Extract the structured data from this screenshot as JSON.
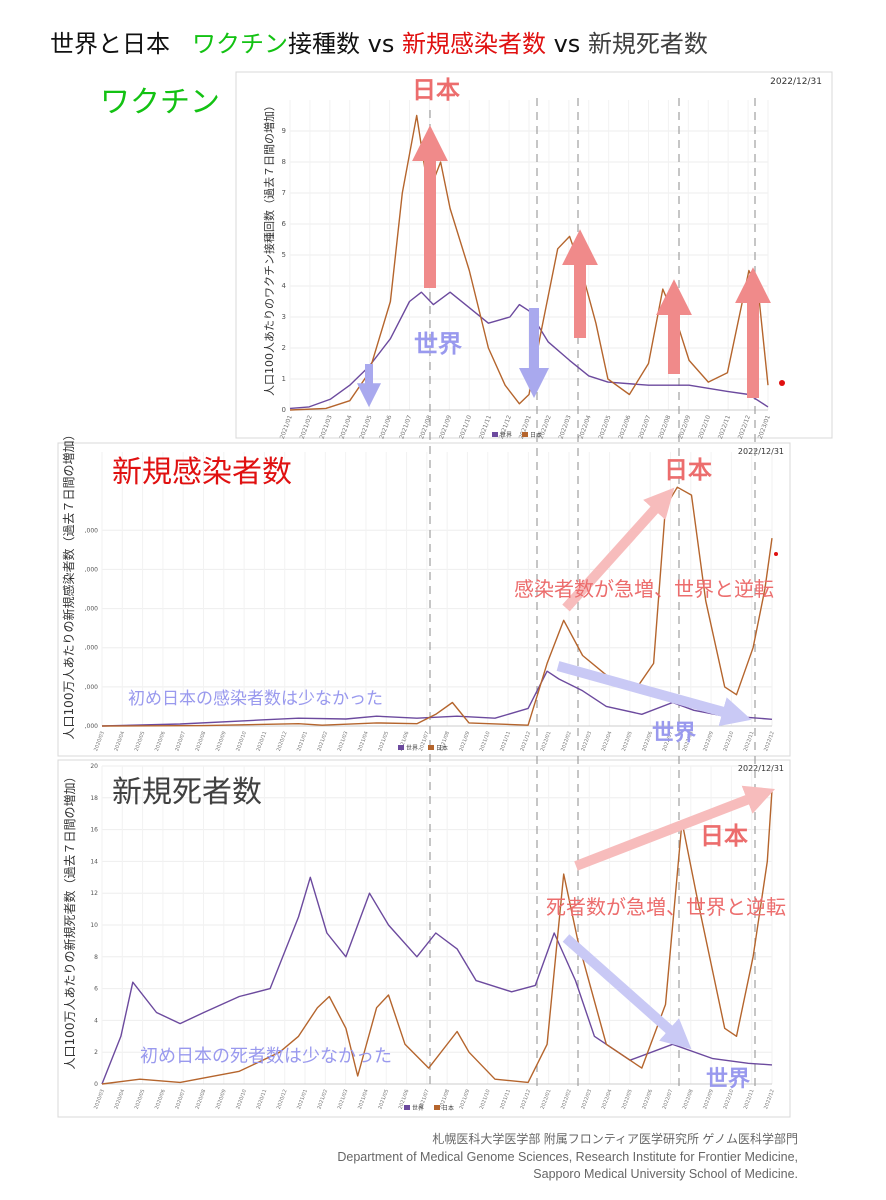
{
  "title": {
    "part1": "世界と日本",
    "part2": "ワクチン",
    "part3": "接種数 vs ",
    "part4": "新規感染者数",
    "part5": " vs ",
    "part6": "新規死者数"
  },
  "colors": {
    "world": "#6c4a9e",
    "japan": "#b5652d",
    "vaccine_title": "#13c213",
    "cases_title": "#e01010",
    "deaths_title": "#404040",
    "arrow_red": "#f08a8a",
    "arrow_blue": "#a9a9ee",
    "anno_red": "#ec6d6d",
    "anno_blue": "#9999ee"
  },
  "credit": {
    "line1": "札幌医科大学医学部 附属フロンティア医学研究所 ゲノム医科学部門",
    "line2": "Department of Medical Genome Sciences, Research Institute for Frontier Medicine,",
    "line3": "Sapporo Medical University School of Medicine."
  },
  "chart_data": [
    {
      "type": "line",
      "panel_label": "ワクチン",
      "date_label": "2022/12/31",
      "ylabel": "人口100人あたりのワクチン接種回数（過去７日間の増加）",
      "ylim": [
        0,
        10
      ],
      "yticks": [
        "0",
        "1",
        "2",
        "3",
        "4",
        "5",
        "6",
        "7",
        "8",
        "9"
      ],
      "x_ticks": [
        "2021/01",
        "2021/02",
        "2021/03",
        "2021/04",
        "2021/05",
        "2021/06",
        "2021/07",
        "2021/08",
        "2021/09",
        "2021/10",
        "2021/11",
        "2021/12",
        "2022/01",
        "2022/02",
        "2022/03",
        "2022/04",
        "2022/05",
        "2022/06",
        "2022/07",
        "2022/08",
        "2022/09",
        "2022/10",
        "2022/11",
        "2022/12",
        "2023/01"
      ],
      "x_range": [
        2021.0,
        2023.0
      ],
      "legend": [
        "世界",
        "日本"
      ],
      "annotations": {
        "japan": "日本",
        "world": "世界"
      },
      "series": [
        {
          "name": "世界",
          "points": [
            [
              2021.0,
              0.05
            ],
            [
              2021.08,
              0.1
            ],
            [
              2021.17,
              0.35
            ],
            [
              2021.25,
              0.8
            ],
            [
              2021.33,
              1.4
            ],
            [
              2021.42,
              2.3
            ],
            [
              2021.5,
              3.5
            ],
            [
              2021.55,
              3.8
            ],
            [
              2021.6,
              3.4
            ],
            [
              2021.67,
              3.8
            ],
            [
              2021.75,
              3.3
            ],
            [
              2021.83,
              2.8
            ],
            [
              2021.92,
              3.0
            ],
            [
              2021.96,
              3.4
            ],
            [
              2022.0,
              3.2
            ],
            [
              2022.08,
              2.2
            ],
            [
              2022.17,
              1.6
            ],
            [
              2022.25,
              1.1
            ],
            [
              2022.33,
              0.9
            ],
            [
              2022.5,
              0.8
            ],
            [
              2022.67,
              0.8
            ],
            [
              2022.83,
              0.6
            ],
            [
              2022.92,
              0.5
            ],
            [
              2023.0,
              0.1
            ]
          ]
        },
        {
          "name": "日本",
          "points": [
            [
              2021.0,
              0.0
            ],
            [
              2021.15,
              0.05
            ],
            [
              2021.25,
              0.3
            ],
            [
              2021.33,
              1.2
            ],
            [
              2021.42,
              3.5
            ],
            [
              2021.47,
              7.0
            ],
            [
              2021.53,
              9.5
            ],
            [
              2021.58,
              7.0
            ],
            [
              2021.63,
              8.0
            ],
            [
              2021.67,
              6.5
            ],
            [
              2021.75,
              4.5
            ],
            [
              2021.83,
              2.0
            ],
            [
              2021.9,
              0.8
            ],
            [
              2021.96,
              0.2
            ],
            [
              2022.0,
              0.5
            ],
            [
              2022.05,
              2.5
            ],
            [
              2022.12,
              5.2
            ],
            [
              2022.17,
              5.6
            ],
            [
              2022.22,
              4.5
            ],
            [
              2022.28,
              2.8
            ],
            [
              2022.33,
              1.0
            ],
            [
              2022.42,
              0.5
            ],
            [
              2022.5,
              1.5
            ],
            [
              2022.56,
              3.9
            ],
            [
              2022.62,
              2.8
            ],
            [
              2022.67,
              1.6
            ],
            [
              2022.75,
              0.9
            ],
            [
              2022.83,
              1.2
            ],
            [
              2022.92,
              4.5
            ],
            [
              2022.96,
              3.8
            ],
            [
              2023.0,
              0.8
            ]
          ]
        }
      ]
    },
    {
      "type": "line",
      "panel_label": "新規感染者数",
      "date_label": "2022/12/31",
      "ylabel": "人口100万人あたりの新規感染者数（過去７日間の増加）",
      "ylim": [
        0,
        7000
      ],
      "yticks": [
        ",000",
        ",000",
        ",000",
        ",000",
        ",000",
        ",000"
      ],
      "x_ticks": [
        "2020/03",
        "2020/04",
        "2020/05",
        "2020/06",
        "2020/07",
        "2020/08",
        "2020/09",
        "2020/10",
        "2020/11",
        "2020/12",
        "2021/01",
        "2021/02",
        "2021/03",
        "2021/04",
        "2021/05",
        "2021/06",
        "2021/07",
        "2021/08",
        "2021/09",
        "2021/10",
        "2021/11",
        "2021/12",
        "2022/01",
        "2022/02",
        "2022/03",
        "2022/04",
        "2022/05",
        "2022/06",
        "2022/07",
        "2022/08",
        "2022/09",
        "2022/10",
        "2022/11",
        "2022/12"
      ],
      "x_range": [
        2020.17,
        2023.0
      ],
      "legend": [
        "世界",
        "日本"
      ],
      "annotations": {
        "japan": "日本",
        "world": "世界",
        "reversal": "感染者数が急増、世界と逆転",
        "initial": "初め日本の感染者数は少なかった"
      },
      "series": [
        {
          "name": "世界",
          "points": [
            [
              2020.17,
              0
            ],
            [
              2020.5,
              50
            ],
            [
              2020.83,
              150
            ],
            [
              2021.0,
              200
            ],
            [
              2021.2,
              180
            ],
            [
              2021.33,
              250
            ],
            [
              2021.5,
              200
            ],
            [
              2021.67,
              250
            ],
            [
              2021.83,
              200
            ],
            [
              2021.97,
              450
            ],
            [
              2022.05,
              1400
            ],
            [
              2022.1,
              1200
            ],
            [
              2022.2,
              900
            ],
            [
              2022.3,
              500
            ],
            [
              2022.45,
              300
            ],
            [
              2022.58,
              600
            ],
            [
              2022.67,
              400
            ],
            [
              2022.8,
              250
            ],
            [
              2022.9,
              220
            ],
            [
              2023.0,
              170
            ]
          ]
        },
        {
          "name": "日本",
          "points": [
            [
              2020.17,
              0
            ],
            [
              2020.6,
              10
            ],
            [
              2021.0,
              60
            ],
            [
              2021.1,
              20
            ],
            [
              2021.33,
              80
            ],
            [
              2021.5,
              60
            ],
            [
              2021.58,
              300
            ],
            [
              2021.65,
              600
            ],
            [
              2021.72,
              80
            ],
            [
              2021.97,
              20
            ],
            [
              2022.05,
              1600
            ],
            [
              2022.12,
              2700
            ],
            [
              2022.2,
              1800
            ],
            [
              2022.3,
              1300
            ],
            [
              2022.42,
              900
            ],
            [
              2022.5,
              1600
            ],
            [
              2022.55,
              5600
            ],
            [
              2022.6,
              6100
            ],
            [
              2022.66,
              5900
            ],
            [
              2022.72,
              3200
            ],
            [
              2022.8,
              1000
            ],
            [
              2022.85,
              800
            ],
            [
              2022.92,
              2000
            ],
            [
              2022.97,
              3500
            ],
            [
              2023.0,
              4800
            ]
          ]
        }
      ]
    },
    {
      "type": "line",
      "panel_label": "新規死者数",
      "date_label": "2022/12/31",
      "ylabel": "人口100万人あたりの新規死者数（過去７日間の増加）",
      "ylim": [
        0,
        20
      ],
      "yticks": [
        "0",
        "2",
        "4",
        "6",
        "8",
        "10",
        "12",
        "14",
        "16",
        "18",
        "20"
      ],
      "x_ticks": [
        "2020/03",
        "2020/04",
        "2020/05",
        "2020/06",
        "2020/07",
        "2020/08",
        "2020/09",
        "2020/10",
        "2020/11",
        "2020/12",
        "2021/01",
        "2021/02",
        "2021/03",
        "2021/04",
        "2021/05",
        "2021/06",
        "2021/07",
        "2021/08",
        "2021/09",
        "2021/10",
        "2021/11",
        "2021/12",
        "2022/01",
        "2022/02",
        "2022/03",
        "2022/04",
        "2022/05",
        "2022/06",
        "2022/07",
        "2022/08",
        "2022/09",
        "2022/10",
        "2022/11",
        "2022/12"
      ],
      "x_range": [
        2020.17,
        2023.0
      ],
      "legend": [
        "世界",
        "日本"
      ],
      "annotations": {
        "japan": "日本",
        "world": "世界",
        "reversal": "死者数が急増、世界と逆転",
        "initial": "初め日本の死者数は少なかった"
      },
      "series": [
        {
          "name": "世界",
          "points": [
            [
              2020.17,
              0
            ],
            [
              2020.25,
              3
            ],
            [
              2020.3,
              6.4
            ],
            [
              2020.4,
              4.5
            ],
            [
              2020.5,
              3.8
            ],
            [
              2020.6,
              4.5
            ],
            [
              2020.75,
              5.5
            ],
            [
              2020.88,
              6.0
            ],
            [
              2021.0,
              10.5
            ],
            [
              2021.05,
              13.0
            ],
            [
              2021.12,
              9.5
            ],
            [
              2021.2,
              8.0
            ],
            [
              2021.3,
              12.0
            ],
            [
              2021.38,
              10.0
            ],
            [
              2021.5,
              8.0
            ],
            [
              2021.58,
              9.5
            ],
            [
              2021.67,
              8.5
            ],
            [
              2021.75,
              6.5
            ],
            [
              2021.9,
              5.8
            ],
            [
              2022.0,
              6.2
            ],
            [
              2022.08,
              9.5
            ],
            [
              2022.17,
              6.5
            ],
            [
              2022.25,
              3.0
            ],
            [
              2022.4,
              1.5
            ],
            [
              2022.58,
              2.5
            ],
            [
              2022.75,
              1.6
            ],
            [
              2022.9,
              1.3
            ],
            [
              2023.0,
              1.2
            ]
          ]
        },
        {
          "name": "日本",
          "points": [
            [
              2020.17,
              0
            ],
            [
              2020.33,
              0.3
            ],
            [
              2020.5,
              0.1
            ],
            [
              2020.75,
              0.8
            ],
            [
              2020.92,
              2.0
            ],
            [
              2021.0,
              3.0
            ],
            [
              2021.08,
              4.8
            ],
            [
              2021.13,
              5.5
            ],
            [
              2021.2,
              3.5
            ],
            [
              2021.25,
              0.5
            ],
            [
              2021.33,
              4.8
            ],
            [
              2021.38,
              5.6
            ],
            [
              2021.45,
              2.5
            ],
            [
              2021.55,
              1.0
            ],
            [
              2021.67,
              3.3
            ],
            [
              2021.72,
              2.0
            ],
            [
              2021.83,
              0.3
            ],
            [
              2021.97,
              0.1
            ],
            [
              2022.05,
              2.5
            ],
            [
              2022.12,
              13.2
            ],
            [
              2022.18,
              9.0
            ],
            [
              2022.3,
              2.5
            ],
            [
              2022.45,
              1.0
            ],
            [
              2022.55,
              5.0
            ],
            [
              2022.62,
              16.5
            ],
            [
              2022.68,
              12.0
            ],
            [
              2022.8,
              3.5
            ],
            [
              2022.85,
              3.0
            ],
            [
              2022.92,
              8.0
            ],
            [
              2022.98,
              14.0
            ],
            [
              2023.0,
              18.5
            ]
          ]
        }
      ]
    }
  ]
}
